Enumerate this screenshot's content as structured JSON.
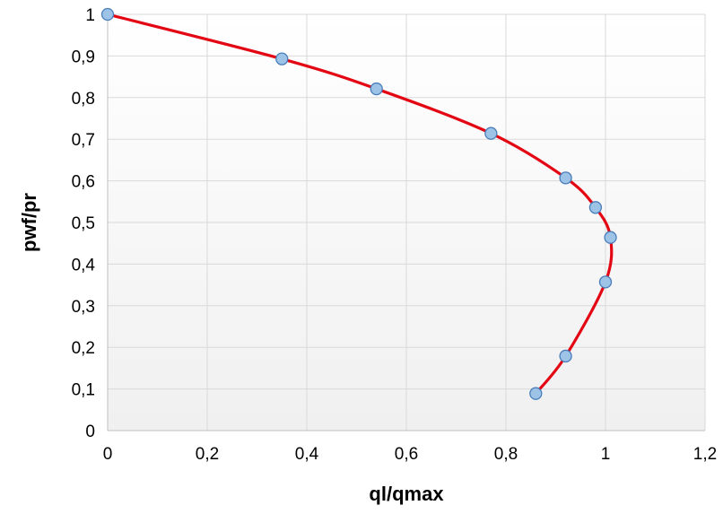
{
  "chart_data": {
    "type": "scatter",
    "title": "",
    "xlabel": "ql/qmax",
    "ylabel": "pwf/pr",
    "xlim": [
      0,
      1.2
    ],
    "ylim": [
      0,
      1
    ],
    "x_ticks": [
      "0",
      "0,2",
      "0,4",
      "0,6",
      "0,8",
      "1",
      "1,2"
    ],
    "y_ticks": [
      "0",
      "0,1",
      "0,2",
      "0,3",
      "0,4",
      "0,5",
      "0,6",
      "0,7",
      "0,8",
      "0,9",
      "1"
    ],
    "grid": true,
    "legend": "none",
    "series": [
      {
        "points": [
          {
            "x": 0.0,
            "y": 1.0
          },
          {
            "x": 0.35,
            "y": 0.893
          },
          {
            "x": 0.54,
            "y": 0.821
          },
          {
            "x": 0.77,
            "y": 0.714
          },
          {
            "x": 0.92,
            "y": 0.607
          },
          {
            "x": 0.98,
            "y": 0.536
          },
          {
            "x": 1.01,
            "y": 0.464
          },
          {
            "x": 1.0,
            "y": 0.357
          },
          {
            "x": 0.92,
            "y": 0.179
          },
          {
            "x": 0.86,
            "y": 0.089
          }
        ],
        "line_color": "#e30613",
        "marker_color": "#9dc3e6",
        "marker_edge_color": "#4a7ebb",
        "smooth": true
      }
    ]
  }
}
